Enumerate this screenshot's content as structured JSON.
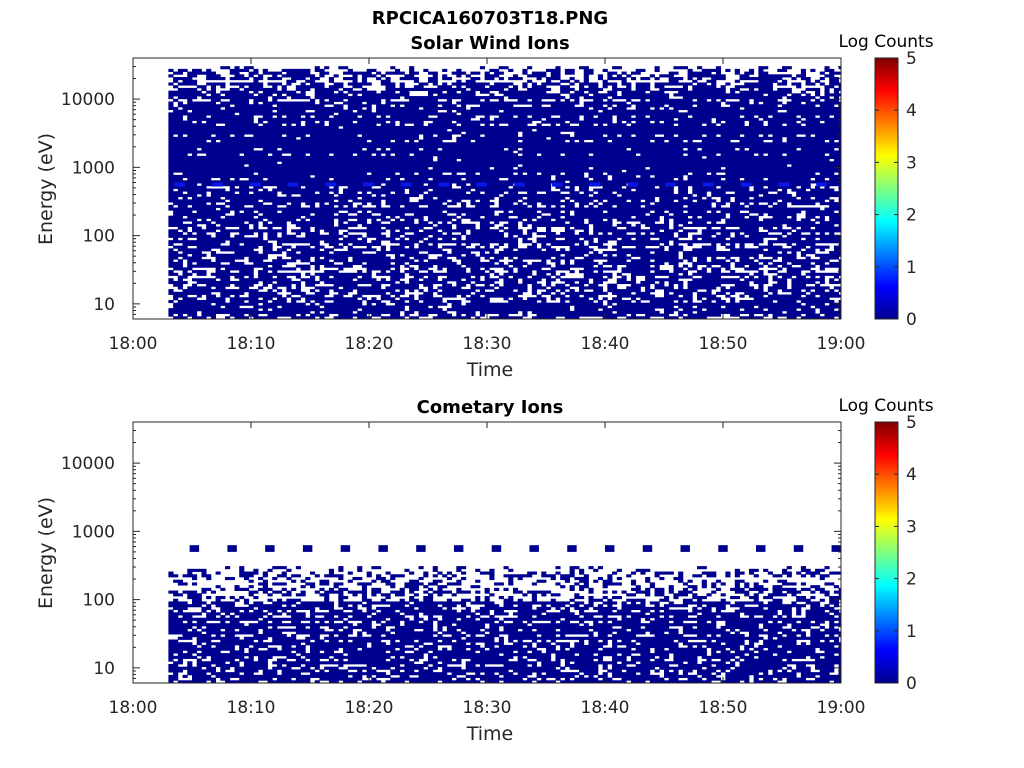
{
  "figure_title": "RPCICA160703T18.PNG",
  "chart_data": [
    {
      "type": "heatmap",
      "title": "Solar Wind Ions",
      "xlabel": "Time",
      "ylabel": "Energy (eV)",
      "x_ticks": [
        "18:00",
        "18:10",
        "18:20",
        "18:30",
        "18:40",
        "18:50",
        "19:00"
      ],
      "x_range": [
        "18:00",
        "19:00"
      ],
      "y_scale": "log",
      "y_range_eV": [
        6,
        40000
      ],
      "y_ticks": [
        {
          "value": 10,
          "label": "10"
        },
        {
          "value": 100,
          "label": "100"
        },
        {
          "value": 1000,
          "label": "1000"
        },
        {
          "value": 10000,
          "label": "10000"
        }
      ],
      "data_start": "18:03",
      "data_end": "19:00",
      "fill_profile": [
        {
          "energy": 10,
          "fraction": 0.78
        },
        {
          "energy": 30,
          "fraction": 0.7
        },
        {
          "energy": 100,
          "fraction": 0.72
        },
        {
          "energy": 300,
          "fraction": 0.82
        },
        {
          "energy": 1000,
          "fraction": 0.95
        },
        {
          "energy": 5000,
          "fraction": 0.93
        },
        {
          "energy": 15000,
          "fraction": 0.65
        },
        {
          "energy": 30000,
          "fraction": 0.25
        }
      ],
      "enhanced_band": {
        "energy": 560,
        "log_counts": 0.6
      },
      "colorbar": {
        "label": "Log Counts",
        "min": 0,
        "max": 5,
        "ticks": [
          "0",
          "1",
          "2",
          "3",
          "4",
          "5"
        ]
      }
    },
    {
      "type": "heatmap",
      "title": "Cometary Ions",
      "xlabel": "Time",
      "ylabel": "Energy (eV)",
      "x_ticks": [
        "18:00",
        "18:10",
        "18:20",
        "18:30",
        "18:40",
        "18:50",
        "19:00"
      ],
      "x_range": [
        "18:00",
        "19:00"
      ],
      "y_scale": "log",
      "y_range_eV": [
        6,
        40000
      ],
      "y_ticks": [
        {
          "value": 10,
          "label": "10"
        },
        {
          "value": 100,
          "label": "100"
        },
        {
          "value": 1000,
          "label": "1000"
        },
        {
          "value": 10000,
          "label": "10000"
        }
      ],
      "data_start": "18:03",
      "data_end": "19:00",
      "fill_profile": [
        {
          "energy": 8,
          "fraction": 0.72
        },
        {
          "energy": 20,
          "fraction": 0.75
        },
        {
          "energy": 40,
          "fraction": 0.8
        },
        {
          "energy": 100,
          "fraction": 0.55
        },
        {
          "energy": 200,
          "fraction": 0.35
        },
        {
          "energy": 300,
          "fraction": 0.08
        }
      ],
      "periodic_spots": {
        "energy": 560,
        "period_minutes": 3.2
      },
      "colorbar": {
        "label": "Log Counts",
        "min": 0,
        "max": 5,
        "ticks": [
          "0",
          "1",
          "2",
          "3",
          "4",
          "5"
        ]
      }
    }
  ],
  "colors": {
    "zero_count": "#00008f",
    "enhanced": "#0a18e6",
    "axis": "#262626",
    "colormap": [
      "#00008f",
      "#0000ff",
      "#00ffff",
      "#ffff00",
      "#ff0000",
      "#800000"
    ]
  }
}
